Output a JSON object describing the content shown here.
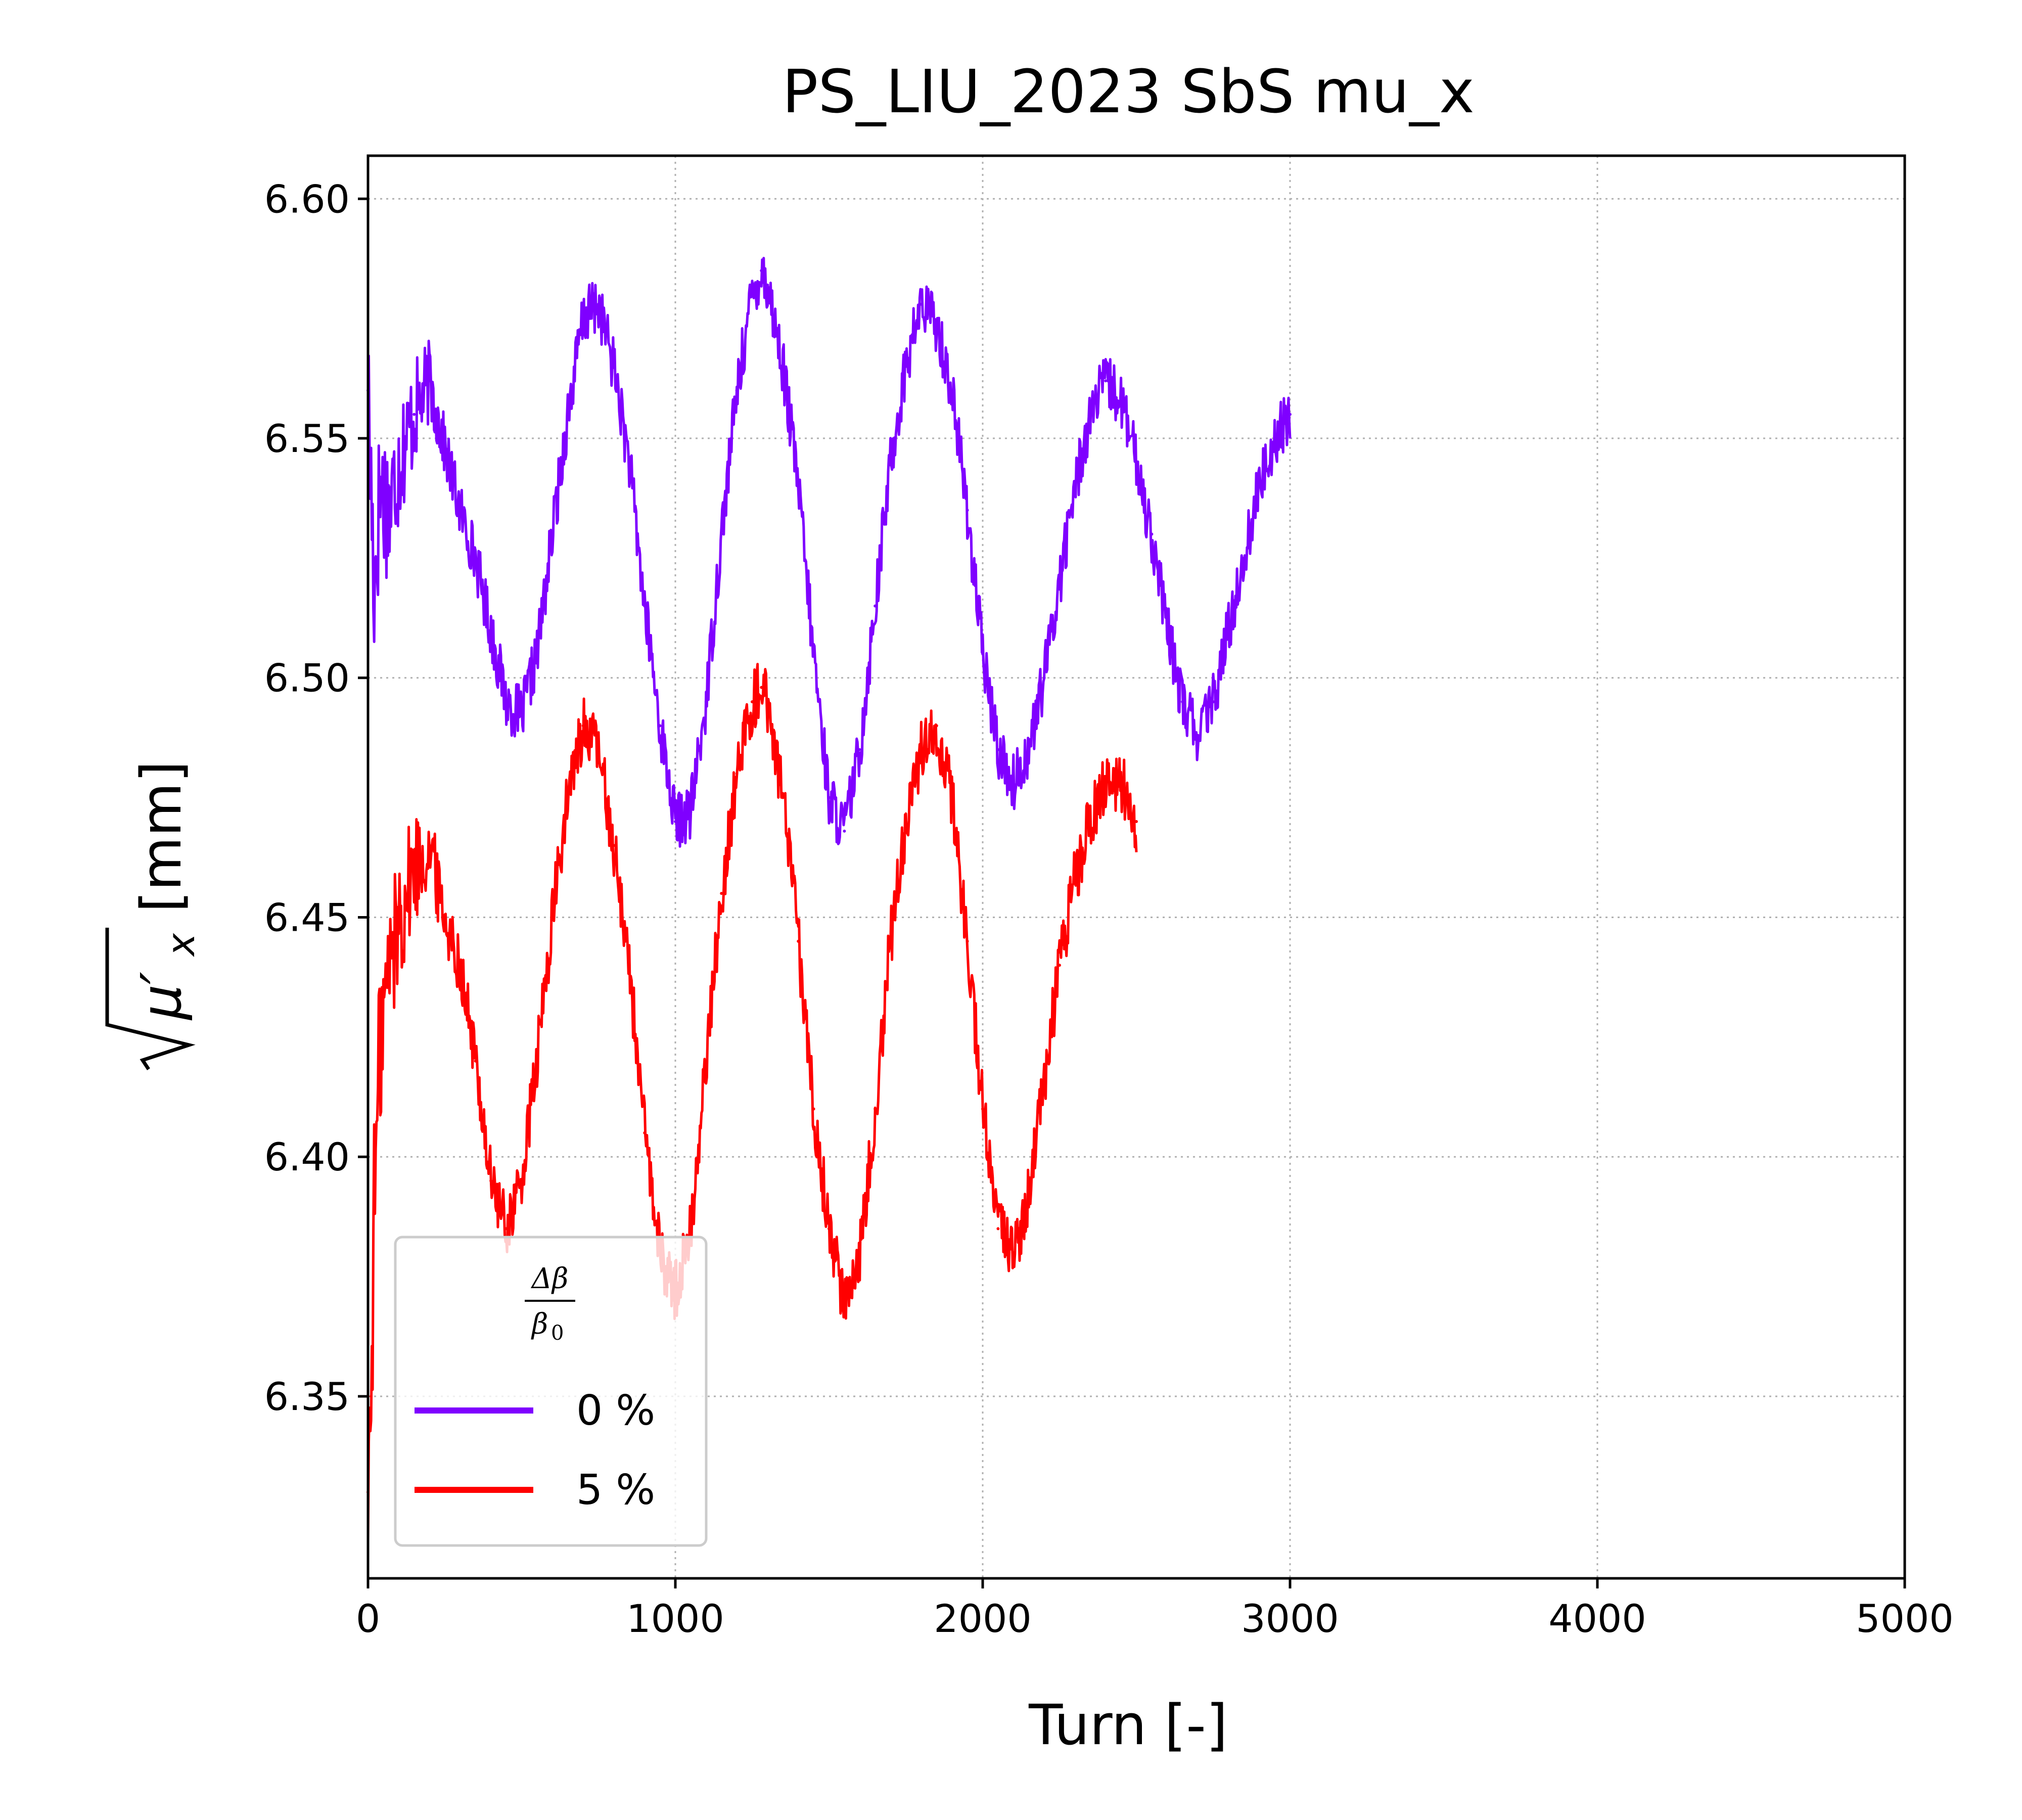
{
  "chart_data": {
    "type": "line",
    "title": "PS_LIU_2023 SbS mu_x",
    "xlabel": "Turn [-]",
    "ylabel_sqrt": "μ′",
    "ylabel_sub": "x",
    "ylabel_unit": "[mm]",
    "xlim": [
      0,
      5000
    ],
    "ylim": [
      6.312,
      6.609
    ],
    "xticks": [
      0,
      1000,
      2000,
      3000,
      4000,
      5000
    ],
    "xtick_labels": [
      "0",
      "1000",
      "2000",
      "3000",
      "4000",
      "5000"
    ],
    "yticks": [
      6.35,
      6.4,
      6.45,
      6.5,
      6.55,
      6.6
    ],
    "ytick_labels": [
      "6.35",
      "6.40",
      "6.45",
      "6.50",
      "6.55",
      "6.60"
    ],
    "grid": true,
    "legend": {
      "placement": "lower-left",
      "title_num": "Δβ",
      "title_den": "β",
      "title_den_sub": "0"
    },
    "series": [
      {
        "name": "0 %",
        "color": "#7f00ff",
        "band": 0.012,
        "x": [
          0,
          20,
          40,
          70,
          100,
          150,
          200,
          250,
          300,
          350,
          400,
          450,
          500,
          550,
          600,
          650,
          700,
          750,
          800,
          850,
          900,
          950,
          1000,
          1050,
          1100,
          1150,
          1200,
          1250,
          1280,
          1300,
          1350,
          1400,
          1450,
          1500,
          1550,
          1600,
          1650,
          1700,
          1750,
          1800,
          1850,
          1900,
          1950,
          2000,
          2050,
          2100,
          2150,
          2200,
          2250,
          2300,
          2350,
          2400,
          2450,
          2500,
          2550,
          2600,
          2650,
          2700,
          2750,
          2800,
          2850,
          2900,
          2950,
          3000
        ],
        "y": [
          6.56,
          6.52,
          6.54,
          6.535,
          6.545,
          6.555,
          6.562,
          6.548,
          6.535,
          6.525,
          6.51,
          6.495,
          6.492,
          6.505,
          6.53,
          6.555,
          6.575,
          6.578,
          6.565,
          6.545,
          6.515,
          6.49,
          6.47,
          6.472,
          6.495,
          6.53,
          6.56,
          6.58,
          6.585,
          6.582,
          6.565,
          6.54,
          6.505,
          6.475,
          6.468,
          6.485,
          6.515,
          6.545,
          6.565,
          6.578,
          6.574,
          6.56,
          6.535,
          6.505,
          6.485,
          6.478,
          6.485,
          6.5,
          6.52,
          6.54,
          6.555,
          6.562,
          6.558,
          6.545,
          6.53,
          6.51,
          6.495,
          6.488,
          6.495,
          6.51,
          6.525,
          6.54,
          6.55,
          6.555
        ]
      },
      {
        "name": "5 %",
        "color": "#ff0000",
        "band": 0.013,
        "x": [
          0,
          10,
          20,
          40,
          70,
          100,
          150,
          200,
          250,
          300,
          350,
          400,
          450,
          500,
          550,
          600,
          650,
          700,
          750,
          800,
          850,
          900,
          950,
          1000,
          1050,
          1100,
          1150,
          1200,
          1250,
          1280,
          1300,
          1350,
          1400,
          1450,
          1500,
          1550,
          1600,
          1650,
          1700,
          1750,
          1800,
          1850,
          1900,
          1950,
          2000,
          2050,
          2100,
          2150,
          2200,
          2250,
          2300,
          2350,
          2400,
          2450,
          2500
        ],
        "y": [
          6.33,
          6.35,
          6.39,
          6.425,
          6.44,
          6.45,
          6.46,
          6.465,
          6.45,
          6.44,
          6.42,
          6.395,
          6.385,
          6.395,
          6.42,
          6.45,
          6.475,
          6.49,
          6.485,
          6.465,
          6.44,
          6.405,
          6.38,
          6.372,
          6.385,
          6.42,
          6.455,
          6.48,
          6.495,
          6.498,
          6.495,
          6.475,
          6.445,
          6.41,
          6.385,
          6.37,
          6.38,
          6.41,
          6.445,
          6.47,
          6.485,
          6.49,
          6.475,
          6.445,
          6.41,
          6.385,
          6.38,
          6.392,
          6.415,
          6.44,
          6.458,
          6.47,
          6.478,
          6.478,
          6.47
        ]
      }
    ]
  }
}
